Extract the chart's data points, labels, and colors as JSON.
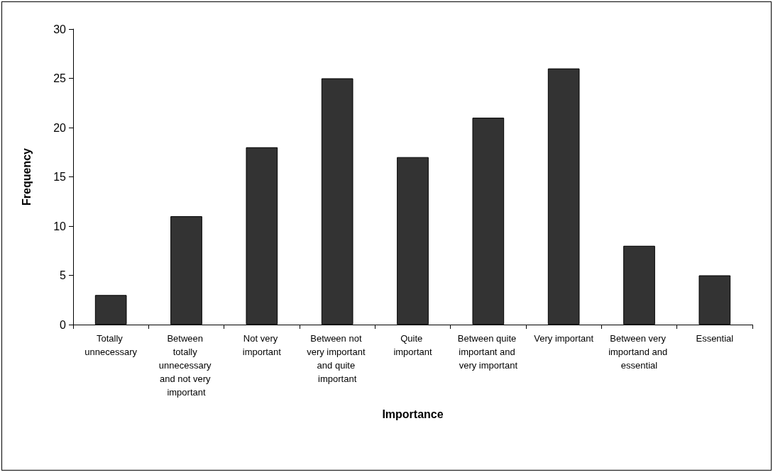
{
  "chart_data": {
    "type": "bar",
    "xlabel": "Importance",
    "ylabel": "Frequency",
    "categories": [
      "Totally unnecessary",
      "Between totally unnecessary and not very important",
      "Not very important",
      "Between not very important and quite important",
      "Quite important",
      "Between quite important and very important",
      "Very important",
      "Between very importand and essential",
      "Essential"
    ],
    "values": [
      3,
      11,
      18,
      25,
      17,
      21,
      26,
      8,
      5
    ],
    "color": "#333333",
    "ylim": [
      0,
      30
    ],
    "yticks": [
      0,
      5,
      10,
      15,
      20,
      25,
      30
    ],
    "grid": false
  }
}
